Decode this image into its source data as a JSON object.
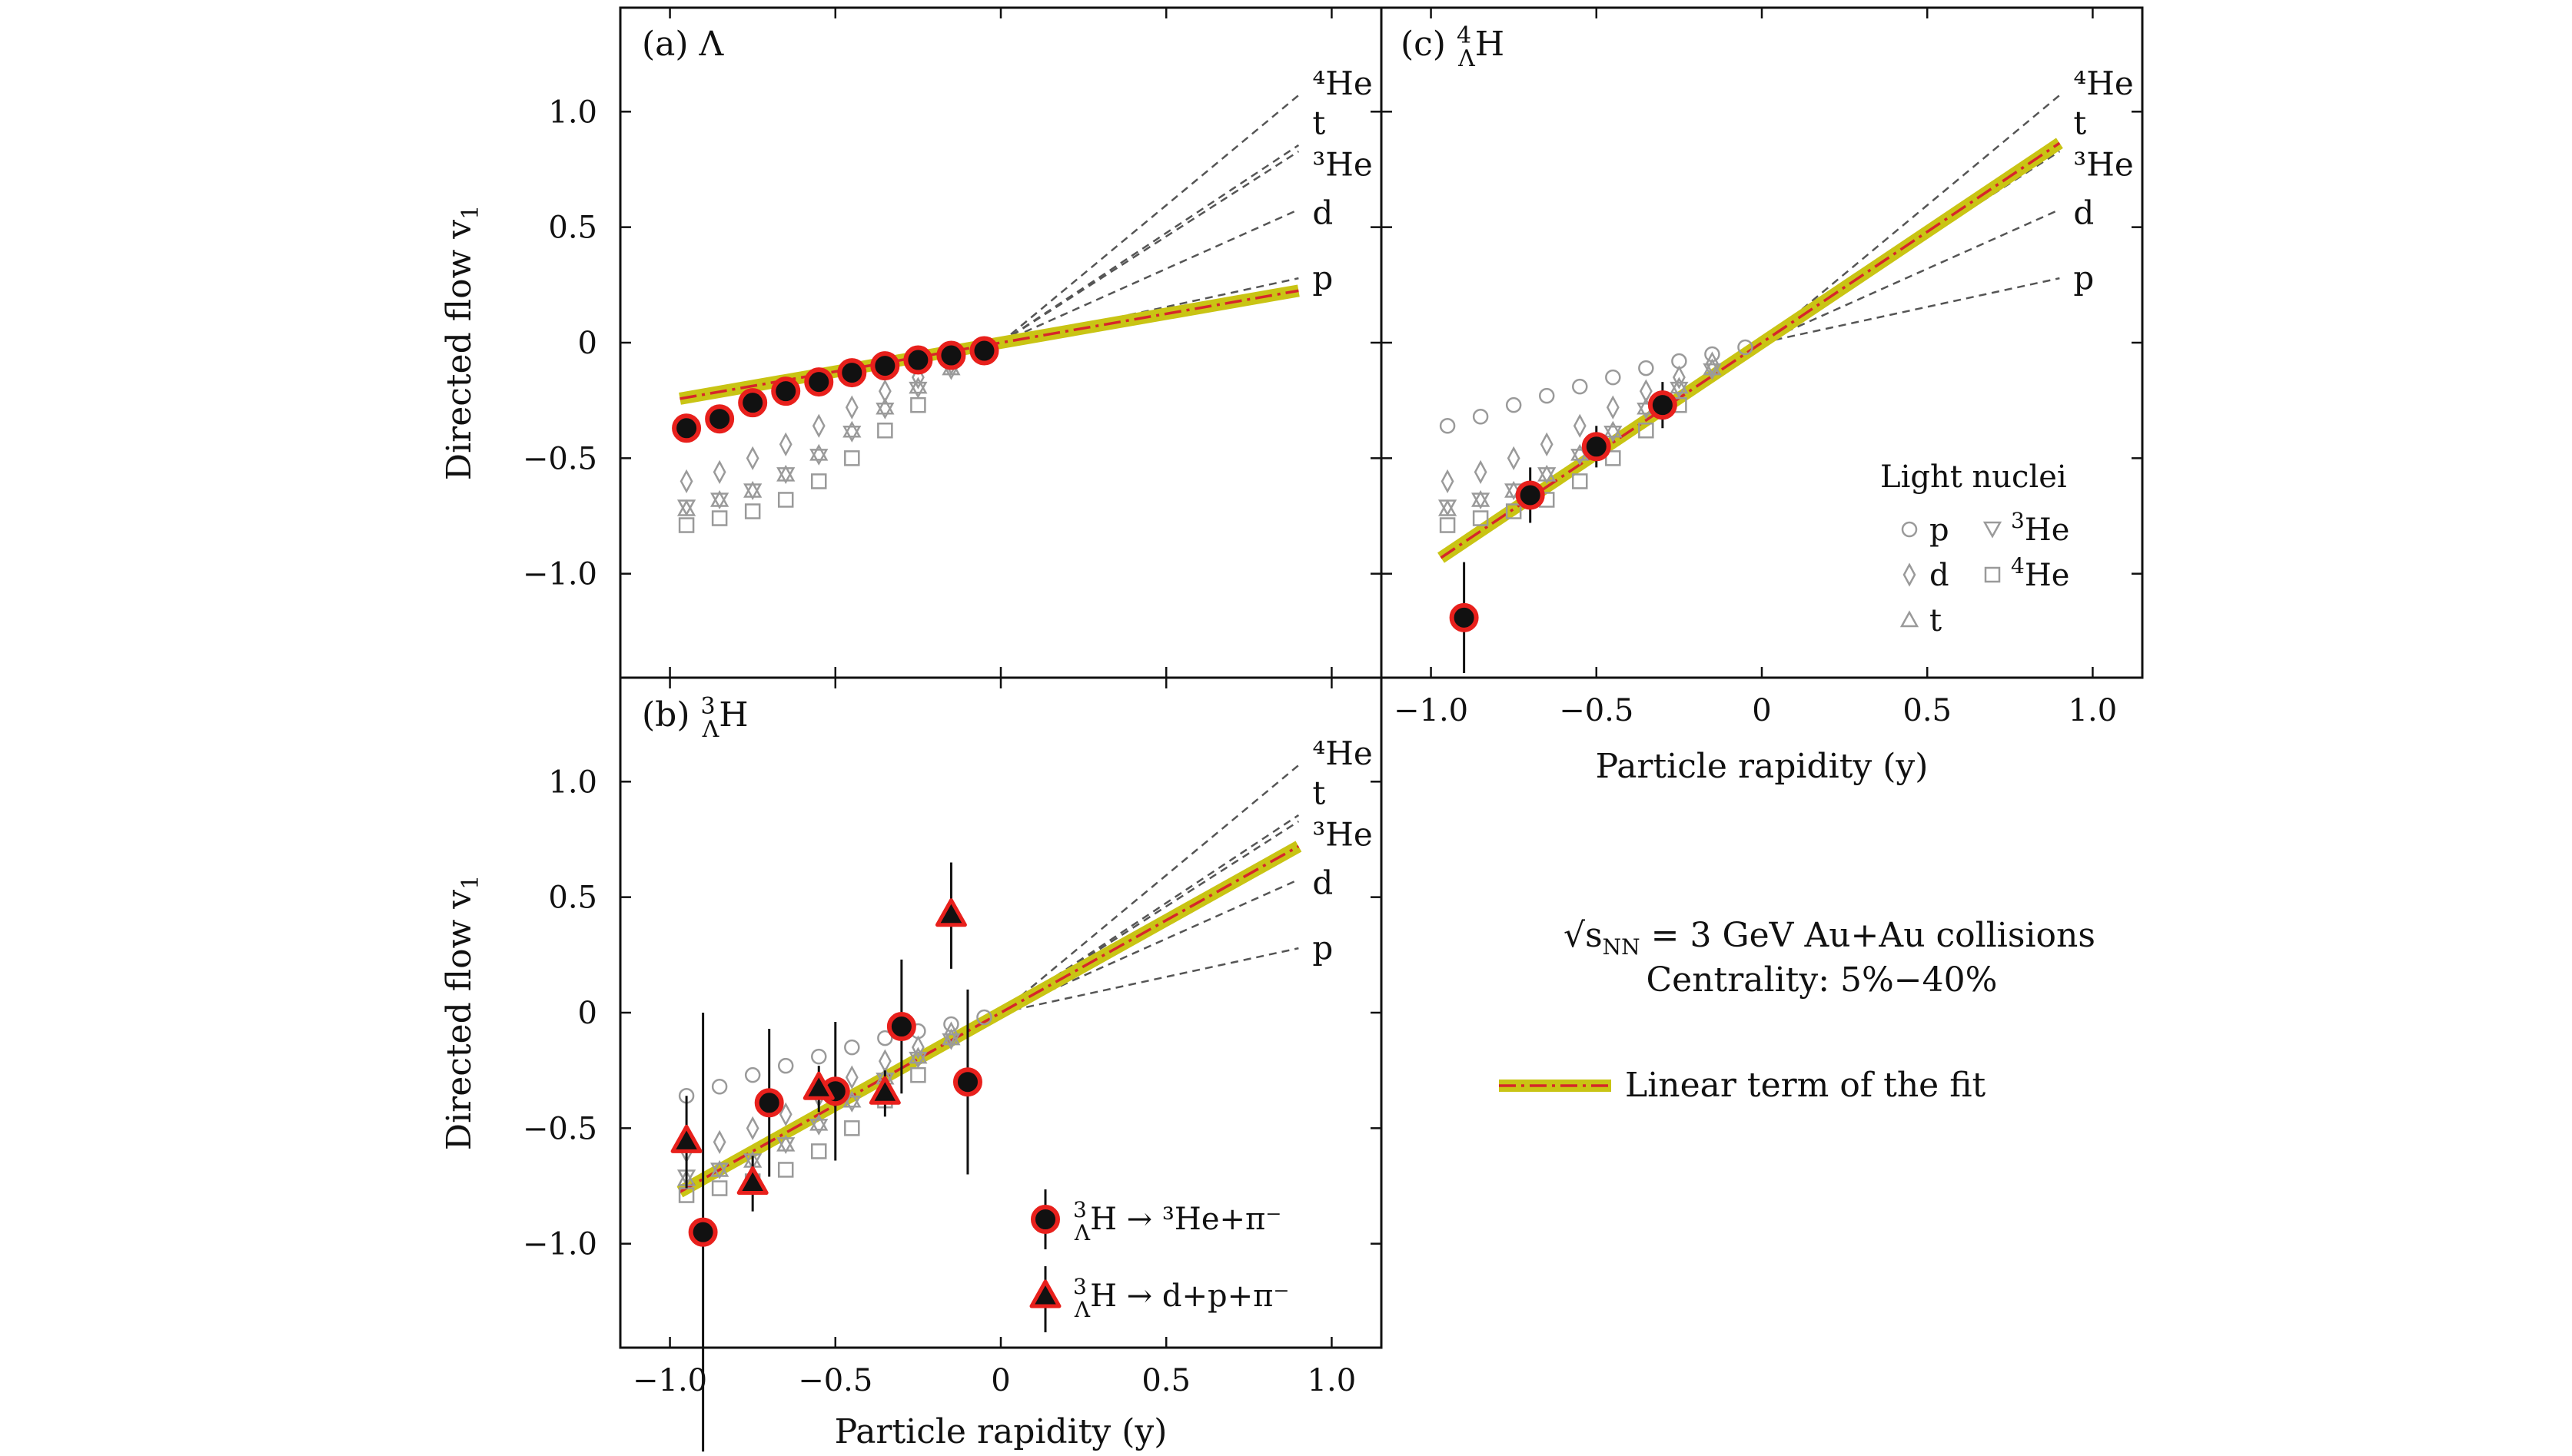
{
  "figure": {
    "annotation_line1_prefix": "√s",
    "annotation_line1_sub": "NN",
    "annotation_line1_rest": " = 3 GeV Au+Au collisions",
    "annotation_line2": "Centrality: 5%−40%",
    "fit_legend_label": "Linear term of the fit",
    "colors": {
      "fit_band": "#c9c414",
      "fit_line": "#d6262a",
      "hypernuclei_edge": "#e8201c",
      "hypernuclei_fill": "#111111",
      "light_nuclei": "#9a9a9a",
      "reference_lines": "#555555"
    }
  },
  "light_nuclei_legend": {
    "title": "Light nuclei",
    "p": "p",
    "d": "d",
    "t": "t",
    "he3_sup": "3",
    "he3_base": "He",
    "he4_sup": "4",
    "he4_base": "He"
  },
  "hypertriton_legend": {
    "decay_2body": " → ³He+π⁻",
    "decay_3body": " → d+p+π⁻"
  },
  "chart_data": [
    {
      "id": "panel_a",
      "type": "scatter",
      "panel_label": "(a) Λ",
      "xlim": [
        -1.15,
        1.15
      ],
      "ylim": [
        -1.45,
        1.45
      ],
      "xticks": [
        "−1.0",
        "−0.5",
        "0",
        "0.5",
        "1.0"
      ],
      "yticks": [
        "1.0",
        "0.5",
        "0",
        "−0.5",
        "−1.0"
      ],
      "show_xticklabels": false,
      "show_yticklabels": true,
      "ylabel": "Directed flow v",
      "ylabel_sub": "1",
      "xlabel": "",
      "x_extent": 0.9,
      "fit_slope": 0.25,
      "reference_lines": [
        {
          "label": "p",
          "slope": 0.31
        },
        {
          "label": "d",
          "slope": 0.64
        },
        {
          "label": "³He",
          "slope": 0.92
        },
        {
          "label": "t",
          "slope": 0.95
        },
        {
          "label": "⁴He",
          "slope": 1.19
        }
      ],
      "light_nuclei": [
        {
          "name": "p",
          "marker": "circle",
          "x": [],
          "y": []
        },
        {
          "name": "d",
          "marker": "diamond",
          "x": [
            -0.95,
            -0.85,
            -0.75,
            -0.65,
            -0.55,
            -0.45,
            -0.35,
            -0.25,
            -0.15
          ],
          "y": [
            -0.6,
            -0.56,
            -0.5,
            -0.44,
            -0.36,
            -0.28,
            -0.21,
            -0.15,
            -0.09
          ]
        },
        {
          "name": "t",
          "marker": "triangle-up",
          "x": [
            -0.95,
            -0.85,
            -0.75,
            -0.65,
            -0.55,
            -0.45,
            -0.35,
            -0.25,
            -0.15
          ],
          "y": [
            -0.72,
            -0.68,
            -0.64,
            -0.57,
            -0.48,
            -0.38,
            -0.28,
            -0.19,
            -0.11
          ]
        },
        {
          "name": "³He",
          "marker": "triangle-down",
          "x": [
            -0.95,
            -0.85,
            -0.75,
            -0.65,
            -0.55,
            -0.45,
            -0.35,
            -0.25,
            -0.15
          ],
          "y": [
            -0.71,
            -0.68,
            -0.64,
            -0.57,
            -0.49,
            -0.39,
            -0.29,
            -0.2,
            -0.12
          ]
        },
        {
          "name": "⁴He",
          "marker": "square",
          "x": [
            -0.95,
            -0.85,
            -0.75,
            -0.65,
            -0.55,
            -0.45,
            -0.35,
            -0.25
          ],
          "y": [
            -0.79,
            -0.76,
            -0.73,
            -0.68,
            -0.6,
            -0.5,
            -0.38,
            -0.27
          ]
        }
      ],
      "hypernuclei": [
        {
          "name": "Λ",
          "marker": "circle",
          "x": [
            -0.95,
            -0.85,
            -0.75,
            -0.65,
            -0.55,
            -0.45,
            -0.35,
            -0.25,
            -0.15,
            -0.05
          ],
          "y": [
            -0.37,
            -0.33,
            -0.26,
            -0.21,
            -0.17,
            -0.13,
            -0.1,
            -0.075,
            -0.055,
            -0.035
          ],
          "yerr": [
            0.0,
            0.0,
            0.0,
            0.0,
            0.0,
            0.0,
            0.0,
            0.0,
            0.0,
            0.0
          ]
        }
      ]
    },
    {
      "id": "panel_b",
      "type": "scatter",
      "panel_label": "(b) ³ΛH",
      "xlim": [
        -1.15,
        1.15
      ],
      "ylim": [
        -1.45,
        1.45
      ],
      "xticks": [
        "−1.0",
        "−0.5",
        "0",
        "0.5",
        "1.0"
      ],
      "yticks": [
        "1.0",
        "0.5",
        "0",
        "−0.5",
        "−1.0"
      ],
      "show_xticklabels": true,
      "show_yticklabels": true,
      "ylabel": "Directed flow v",
      "ylabel_sub": "1",
      "xlabel": "Particle rapidity (y)",
      "x_extent": 0.9,
      "fit_slope": 0.8,
      "reference_lines": [
        {
          "label": "p",
          "slope": 0.31
        },
        {
          "label": "d",
          "slope": 0.64
        },
        {
          "label": "³He",
          "slope": 0.92
        },
        {
          "label": "t",
          "slope": 0.95
        },
        {
          "label": "⁴He",
          "slope": 1.19
        }
      ],
      "light_nuclei": [
        {
          "name": "p",
          "marker": "circle",
          "x": [
            -0.95,
            -0.85,
            -0.75,
            -0.65,
            -0.55,
            -0.45,
            -0.35,
            -0.25,
            -0.15,
            -0.05
          ],
          "y": [
            -0.36,
            -0.32,
            -0.27,
            -0.23,
            -0.19,
            -0.15,
            -0.11,
            -0.08,
            -0.05,
            -0.02
          ]
        },
        {
          "name": "d",
          "marker": "diamond",
          "x": [
            -0.95,
            -0.85,
            -0.75,
            -0.65,
            -0.55,
            -0.45,
            -0.35,
            -0.25,
            -0.15
          ],
          "y": [
            -0.6,
            -0.56,
            -0.5,
            -0.44,
            -0.36,
            -0.28,
            -0.21,
            -0.15,
            -0.09
          ]
        },
        {
          "name": "t",
          "marker": "triangle-up",
          "x": [
            -0.95,
            -0.85,
            -0.75,
            -0.65,
            -0.55,
            -0.45,
            -0.35,
            -0.25,
            -0.15
          ],
          "y": [
            -0.72,
            -0.68,
            -0.64,
            -0.57,
            -0.48,
            -0.38,
            -0.28,
            -0.19,
            -0.11
          ]
        },
        {
          "name": "³He",
          "marker": "triangle-down",
          "x": [
            -0.95,
            -0.85,
            -0.75,
            -0.65,
            -0.55,
            -0.45,
            -0.35,
            -0.25,
            -0.15
          ],
          "y": [
            -0.71,
            -0.68,
            -0.64,
            -0.57,
            -0.49,
            -0.39,
            -0.29,
            -0.2,
            -0.12
          ]
        },
        {
          "name": "⁴He",
          "marker": "square",
          "x": [
            -0.95,
            -0.85,
            -0.75,
            -0.65,
            -0.55,
            -0.45,
            -0.35,
            -0.25
          ],
          "y": [
            -0.79,
            -0.76,
            -0.73,
            -0.68,
            -0.6,
            -0.5,
            -0.38,
            -0.27
          ]
        }
      ],
      "hypernuclei": [
        {
          "name": "³ΛH → ³He+π⁻",
          "marker": "circle",
          "x": [
            -0.9,
            -0.7,
            -0.5,
            -0.3,
            -0.1
          ],
          "y": [
            -0.95,
            -0.39,
            -0.34,
            -0.06,
            -0.3
          ],
          "yerr": [
            0.95,
            0.32,
            0.3,
            0.29,
            0.4
          ]
        },
        {
          "name": "³ΛH → d+p+π⁻",
          "marker": "triangle-up",
          "x": [
            -0.95,
            -0.75,
            -0.55,
            -0.35,
            -0.15
          ],
          "y": [
            -0.56,
            -0.74,
            -0.33,
            -0.35,
            0.42
          ],
          "yerr": [
            0.2,
            0.12,
            0.1,
            0.1,
            0.23
          ]
        }
      ]
    },
    {
      "id": "panel_c",
      "type": "scatter",
      "panel_label": "(c) ⁴ΛH",
      "xlim": [
        -1.15,
        1.15
      ],
      "ylim": [
        -1.45,
        1.45
      ],
      "xticks": [
        "−1.0",
        "−0.5",
        "0",
        "0.5",
        "1.0"
      ],
      "yticks": [
        "1.0",
        "0.5",
        "0",
        "−0.5",
        "−1.0"
      ],
      "show_xticklabels": true,
      "show_yticklabels": false,
      "ylabel": "",
      "ylabel_sub": "",
      "xlabel": "Particle rapidity (y)",
      "x_extent": 0.9,
      "fit_slope": 0.96,
      "reference_lines": [
        {
          "label": "p",
          "slope": 0.31
        },
        {
          "label": "d",
          "slope": 0.64
        },
        {
          "label": "³He",
          "slope": 0.92
        },
        {
          "label": "t",
          "slope": 0.95
        },
        {
          "label": "⁴He",
          "slope": 1.19
        }
      ],
      "light_nuclei": [
        {
          "name": "p",
          "marker": "circle",
          "x": [
            -0.95,
            -0.85,
            -0.75,
            -0.65,
            -0.55,
            -0.45,
            -0.35,
            -0.25,
            -0.15,
            -0.05
          ],
          "y": [
            -0.36,
            -0.32,
            -0.27,
            -0.23,
            -0.19,
            -0.15,
            -0.11,
            -0.08,
            -0.05,
            -0.02
          ]
        },
        {
          "name": "d",
          "marker": "diamond",
          "x": [
            -0.95,
            -0.85,
            -0.75,
            -0.65,
            -0.55,
            -0.45,
            -0.35,
            -0.25,
            -0.15
          ],
          "y": [
            -0.6,
            -0.56,
            -0.5,
            -0.44,
            -0.36,
            -0.28,
            -0.21,
            -0.15,
            -0.09
          ]
        },
        {
          "name": "t",
          "marker": "triangle-up",
          "x": [
            -0.95,
            -0.85,
            -0.75,
            -0.65,
            -0.55,
            -0.45,
            -0.35,
            -0.25,
            -0.15
          ],
          "y": [
            -0.72,
            -0.68,
            -0.64,
            -0.57,
            -0.48,
            -0.38,
            -0.28,
            -0.19,
            -0.11
          ]
        },
        {
          "name": "³He",
          "marker": "triangle-down",
          "x": [
            -0.95,
            -0.85,
            -0.75,
            -0.65,
            -0.55,
            -0.45,
            -0.35,
            -0.25,
            -0.15
          ],
          "y": [
            -0.71,
            -0.68,
            -0.64,
            -0.57,
            -0.49,
            -0.39,
            -0.29,
            -0.2,
            -0.12
          ]
        },
        {
          "name": "⁴He",
          "marker": "square",
          "x": [
            -0.95,
            -0.85,
            -0.75,
            -0.65,
            -0.55,
            -0.45,
            -0.35,
            -0.25
          ],
          "y": [
            -0.79,
            -0.76,
            -0.73,
            -0.68,
            -0.6,
            -0.5,
            -0.38,
            -0.27
          ]
        }
      ],
      "hypernuclei": [
        {
          "name": "⁴ΛH",
          "marker": "circle",
          "x": [
            -0.9,
            -0.7,
            -0.5,
            -0.3
          ],
          "y": [
            -1.19,
            -0.66,
            -0.45,
            -0.27
          ],
          "yerr": [
            0.24,
            0.12,
            0.09,
            0.1
          ]
        }
      ]
    }
  ]
}
